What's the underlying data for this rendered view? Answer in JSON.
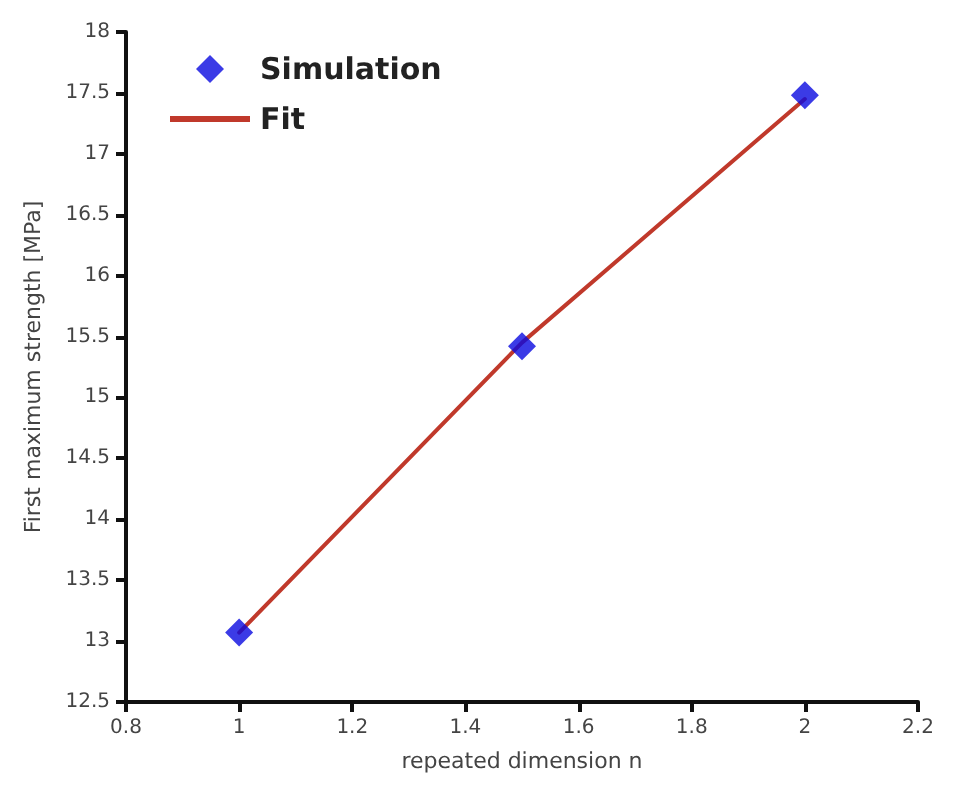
{
  "chart_data": {
    "type": "scatter",
    "xlabel": "repeated dimension n",
    "ylabel": "First maximum strength [MPa]",
    "series": [
      {
        "name": "Simulation",
        "color": "#0a0ae0",
        "marker": "diamond",
        "x": [
          1,
          1.5,
          2
        ],
        "values": [
          13.07,
          15.42,
          17.48
        ]
      },
      {
        "name": "Fit",
        "type": "line",
        "color": "#c0392b",
        "marker": "none",
        "line_style": "solid",
        "x": [
          1,
          1.5,
          2
        ],
        "values": [
          13.07,
          15.45,
          17.45
        ]
      }
    ],
    "xlim": [
      0.8,
      2.2
    ],
    "xticks": [
      0.8,
      1,
      1.2,
      1.4,
      1.6,
      1.8,
      2,
      2.2
    ],
    "ylim": [
      12.5,
      18
    ],
    "yticks": [
      12.5,
      13,
      13.5,
      14,
      14.5,
      15,
      15.5,
      16,
      16.5,
      17,
      17.5,
      18
    ],
    "grid": false,
    "legend": "top left"
  }
}
